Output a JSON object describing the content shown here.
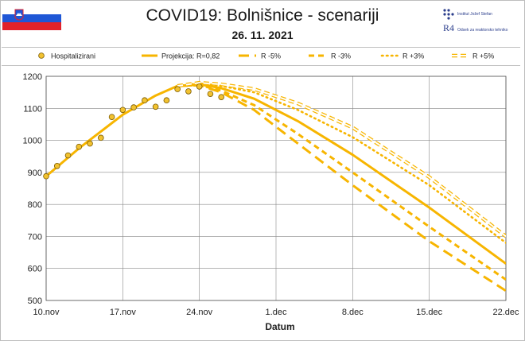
{
  "header": {
    "title": "COVID19: Bolnišnice - scenariji",
    "date": "26. 11. 2021",
    "logo_text_1": "Institut Jožef Stefan",
    "logo_text_2": "Odsek za reaktorsko tehniko",
    "logo_mark": "R4"
  },
  "colors": {
    "series": "#f7b500",
    "marker_fill": "#f2c230",
    "marker_edge": "#7a5a00",
    "grid": "#888888",
    "flag_white": "#ffffff",
    "flag_blue": "#1f57d6",
    "flag_red": "#e2222a"
  },
  "chart_data": {
    "type": "line",
    "xlabel": "Datum",
    "x_ticks": [
      "10.nov",
      "17.nov",
      "24.nov",
      "1.dec",
      "8.dec",
      "15.dec",
      "22.dec"
    ],
    "ylim": [
      500,
      1200
    ],
    "y_ticks": [
      500,
      600,
      700,
      800,
      900,
      1000,
      1100,
      1200
    ],
    "grid": true,
    "legend_position": "top",
    "legend": [
      "Hospitalizirani",
      "Projekcija: R=0,82",
      "R -5%",
      "R -3%",
      "R +3%",
      "R +5%"
    ],
    "observed": {
      "name": "Hospitalizirani",
      "x": [
        "10.nov",
        "11.nov",
        "12.nov",
        "13.nov",
        "14.nov",
        "15.nov",
        "16.nov",
        "17.nov",
        "18.nov",
        "19.nov",
        "20.nov",
        "21.nov",
        "22.nov",
        "23.nov",
        "24.nov",
        "25.nov",
        "26.nov"
      ],
      "y": [
        888,
        920,
        953,
        980,
        990,
        1008,
        1073,
        1095,
        1103,
        1125,
        1105,
        1125,
        1160,
        1153,
        1168,
        1145,
        1135
      ]
    },
    "series": [
      {
        "name": "Projekcija: R=0,82",
        "style": "solid",
        "points": [
          [
            "10.nov",
            888
          ],
          [
            "13.nov",
            975
          ],
          [
            "17.nov",
            1080
          ],
          [
            "20.nov",
            1140
          ],
          [
            "22.nov",
            1170
          ],
          [
            "24.nov",
            1175
          ],
          [
            "26.nov",
            1163
          ],
          [
            "29.nov",
            1130
          ],
          [
            "3.dec",
            1060
          ],
          [
            "8.dec",
            955
          ],
          [
            "15.dec",
            790
          ],
          [
            "22.dec",
            615
          ]
        ]
      },
      {
        "name": "R -5%",
        "style": "dash-long",
        "points": [
          [
            "22.nov",
            1170
          ],
          [
            "24.nov",
            1172
          ],
          [
            "26.nov",
            1150
          ],
          [
            "29.nov",
            1095
          ],
          [
            "3.dec",
            990
          ],
          [
            "8.dec",
            860
          ],
          [
            "15.dec",
            685
          ],
          [
            "22.dec",
            530
          ]
        ]
      },
      {
        "name": "R -3%",
        "style": "dash-short",
        "points": [
          [
            "22.nov",
            1170
          ],
          [
            "24.nov",
            1173
          ],
          [
            "26.nov",
            1155
          ],
          [
            "29.nov",
            1110
          ],
          [
            "3.dec",
            1020
          ],
          [
            "8.dec",
            900
          ],
          [
            "15.dec",
            730
          ],
          [
            "22.dec",
            565
          ]
        ]
      },
      {
        "name": "R +3%",
        "style": "dotted",
        "points": [
          [
            "22.nov",
            1170
          ],
          [
            "24.nov",
            1178
          ],
          [
            "26.nov",
            1170
          ],
          [
            "29.nov",
            1150
          ],
          [
            "3.dec",
            1095
          ],
          [
            "8.dec",
            1010
          ],
          [
            "15.dec",
            860
          ],
          [
            "22.dec",
            680
          ]
        ]
      },
      {
        "name": "R +5%",
        "style": "double",
        "points": [
          [
            "22.nov",
            1170
          ],
          [
            "24.nov",
            1180
          ],
          [
            "26.nov",
            1175
          ],
          [
            "29.nov",
            1160
          ],
          [
            "3.dec",
            1115
          ],
          [
            "8.dec",
            1040
          ],
          [
            "15.dec",
            885
          ],
          [
            "22.dec",
            700
          ]
        ]
      }
    ]
  }
}
